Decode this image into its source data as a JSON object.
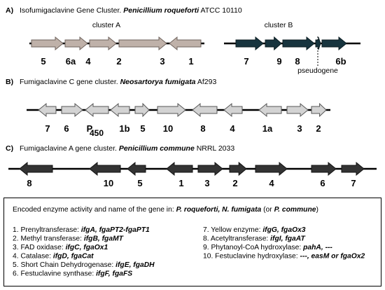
{
  "panel_a": {
    "letter": "A)",
    "title": "Isofumigaclavine Gene Cluster.",
    "organism": "Penicillium roqueforti",
    "strain": "ATCC 10110",
    "cluster_a": {
      "label": "cluster A",
      "genes": [
        "5",
        "6a",
        "4",
        "2",
        "3",
        "1"
      ]
    },
    "cluster_b": {
      "label": "cluster B",
      "genes": [
        "7",
        "9",
        "8",
        "6b"
      ],
      "annotation": "pseudogene"
    }
  },
  "panel_b": {
    "letter": "B)",
    "title": "Fumigaclavine C gene cluster.",
    "organism": "Neosartorya fumigata",
    "strain": "Af293",
    "genes": [
      "7",
      "6",
      "P",
      "1b",
      "5",
      "10",
      "8",
      "4",
      "1a",
      "3",
      "2"
    ],
    "subscript": "450"
  },
  "panel_c": {
    "letter": "C)",
    "title": "Fumigaclavine A gene cluster.",
    "organism": "Penicillium commune",
    "strain": "NRRL 2033",
    "genes": [
      "8",
      "10",
      "5",
      "1",
      "3",
      "2",
      "4",
      "6",
      "7"
    ]
  },
  "legend": {
    "header": {
      "text": "Encoded enzyme activity and name of the gene in:",
      "organisms": "P. roqueforti, N. fumigata",
      "open": "(or",
      "alt": "P. commune",
      "close": ")"
    },
    "items": [
      {
        "label": "1. Prenyltransferase:",
        "genes": "ifgA, fgaPT2-fgaPT1"
      },
      {
        "label": "2. Methyl transferase:",
        "genes": "ifgB, fgaMT"
      },
      {
        "label": "3. FAD oxidase:",
        "genes": "ifgC, fgaOx1"
      },
      {
        "label": "4. Catalase:",
        "genes": "ifgD, fgaCat"
      },
      {
        "label": "5. Short Chain Dehydrogenase:",
        "genes": "ifgE, fgaDH"
      },
      {
        "label": "6. Festuclavine synthase:",
        "genes": "ifgF, fgaFS"
      },
      {
        "label": "7. Yellow enzyme:",
        "genes": "ifgG, fgaOx3"
      },
      {
        "label": "8. Acetyltransferase:",
        "genes": "ifgI, fgaAT"
      },
      {
        "label": "9. Phytanoyl-CoA  hydroxylase:",
        "genes": "pahA, ---"
      },
      {
        "label": "10. Festuclavine hydroxylase:",
        "genes": "---, easM or fgaOx2"
      }
    ]
  }
}
